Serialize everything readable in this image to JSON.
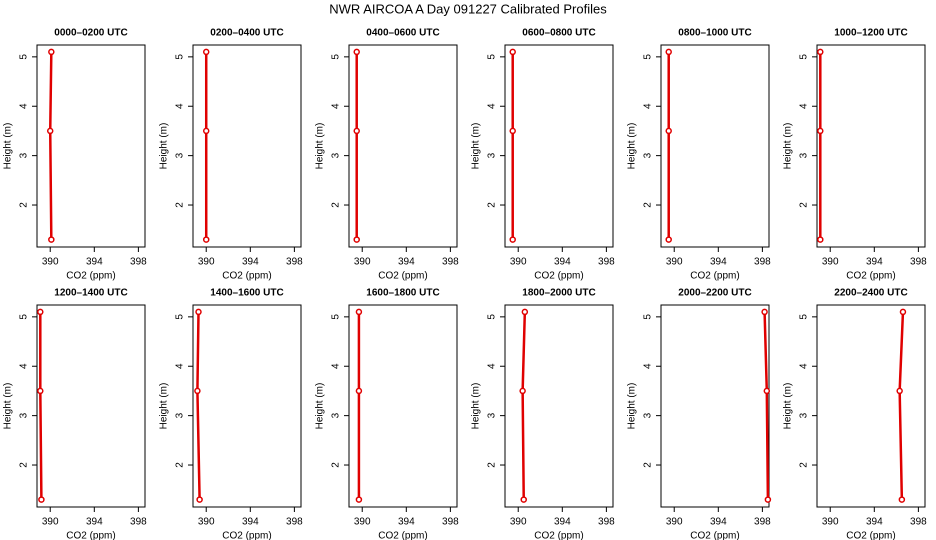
{
  "title": "NWR AIRCOA A  Day 091227  Calibrated Profiles",
  "chart_data": [
    {
      "type": "scatter",
      "title": "0000–0200 UTC",
      "xlabel": "CO2 (ppm)",
      "ylabel": "Height (m)",
      "color": "#e00000",
      "x": [
        390.1,
        390.0,
        390.1
      ],
      "values": [
        1.3,
        3.5,
        5.1
      ],
      "xlim": [
        388.8,
        398.6
      ],
      "ylim": [
        1.15,
        5.24
      ],
      "xticks": [
        390,
        394,
        398
      ],
      "yticks": [
        2,
        3,
        4,
        5
      ]
    },
    {
      "type": "scatter",
      "title": "0200–0400 UTC",
      "xlabel": "CO2 (ppm)",
      "ylabel": "Height (m)",
      "color": "#e00000",
      "x": [
        390.0,
        390.0,
        390.0
      ],
      "values": [
        1.3,
        3.5,
        5.1
      ],
      "xlim": [
        388.8,
        398.6
      ],
      "ylim": [
        1.15,
        5.24
      ],
      "xticks": [
        390,
        394,
        398
      ],
      "yticks": [
        2,
        3,
        4,
        5
      ]
    },
    {
      "type": "scatter",
      "title": "0400–0600 UTC",
      "xlabel": "CO2 (ppm)",
      "ylabel": "Height (m)",
      "color": "#e00000",
      "x": [
        389.5,
        389.5,
        389.5
      ],
      "values": [
        1.3,
        3.5,
        5.1
      ],
      "xlim": [
        388.8,
        398.6
      ],
      "ylim": [
        1.15,
        5.24
      ],
      "xticks": [
        390,
        394,
        398
      ],
      "yticks": [
        2,
        3,
        4,
        5
      ]
    },
    {
      "type": "scatter",
      "title": "0600–0800 UTC",
      "xlabel": "CO2 (ppm)",
      "ylabel": "Height (m)",
      "color": "#e00000",
      "x": [
        389.5,
        389.5,
        389.5
      ],
      "values": [
        1.3,
        3.5,
        5.1
      ],
      "xlim": [
        388.8,
        398.6
      ],
      "ylim": [
        1.15,
        5.24
      ],
      "xticks": [
        390,
        394,
        398
      ],
      "yticks": [
        2,
        3,
        4,
        5
      ]
    },
    {
      "type": "scatter",
      "title": "0800–1000 UTC",
      "xlabel": "CO2 (ppm)",
      "ylabel": "Height (m)",
      "color": "#e00000",
      "x": [
        389.5,
        389.5,
        389.5
      ],
      "values": [
        1.3,
        3.5,
        5.1
      ],
      "xlim": [
        388.8,
        398.6
      ],
      "ylim": [
        1.15,
        5.24
      ],
      "xticks": [
        390,
        394,
        398
      ],
      "yticks": [
        2,
        3,
        4,
        5
      ]
    },
    {
      "type": "scatter",
      "title": "1000–1200 UTC",
      "xlabel": "CO2 (ppm)",
      "ylabel": "Height (m)",
      "color": "#e00000",
      "x": [
        389.1,
        389.1,
        389.1
      ],
      "values": [
        1.3,
        3.5,
        5.1
      ],
      "xlim": [
        388.8,
        398.6
      ],
      "ylim": [
        1.15,
        5.24
      ],
      "xticks": [
        390,
        394,
        398
      ],
      "yticks": [
        2,
        3,
        4,
        5
      ]
    },
    {
      "type": "scatter",
      "title": "1200–1400 UTC",
      "xlabel": "CO2 (ppm)",
      "ylabel": "Height (m)",
      "color": "#e00000",
      "x": [
        389.2,
        389.1,
        389.1
      ],
      "values": [
        1.3,
        3.5,
        5.1
      ],
      "xlim": [
        388.8,
        398.6
      ],
      "ylim": [
        1.15,
        5.24
      ],
      "xticks": [
        390,
        394,
        398
      ],
      "yticks": [
        2,
        3,
        4,
        5
      ]
    },
    {
      "type": "scatter",
      "title": "1400–1600 UTC",
      "xlabel": "CO2 (ppm)",
      "ylabel": "Height (m)",
      "color": "#e00000",
      "x": [
        389.4,
        389.2,
        389.3
      ],
      "values": [
        1.3,
        3.5,
        5.1
      ],
      "xlim": [
        388.8,
        398.6
      ],
      "ylim": [
        1.15,
        5.24
      ],
      "xticks": [
        390,
        394,
        398
      ],
      "yticks": [
        2,
        3,
        4,
        5
      ]
    },
    {
      "type": "scatter",
      "title": "1600–1800 UTC",
      "xlabel": "CO2 (ppm)",
      "ylabel": "Height (m)",
      "color": "#e00000",
      "x": [
        389.7,
        389.7,
        389.7
      ],
      "values": [
        1.3,
        3.5,
        5.1
      ],
      "xlim": [
        388.8,
        398.6
      ],
      "ylim": [
        1.15,
        5.24
      ],
      "xticks": [
        390,
        394,
        398
      ],
      "yticks": [
        2,
        3,
        4,
        5
      ]
    },
    {
      "type": "scatter",
      "title": "1800–2000 UTC",
      "xlabel": "CO2 (ppm)",
      "ylabel": "Height (m)",
      "color": "#e00000",
      "x": [
        390.5,
        390.4,
        390.6
      ],
      "values": [
        1.3,
        3.5,
        5.1
      ],
      "xlim": [
        388.8,
        398.6
      ],
      "ylim": [
        1.15,
        5.24
      ],
      "xticks": [
        390,
        394,
        398
      ],
      "yticks": [
        2,
        3,
        4,
        5
      ]
    },
    {
      "type": "scatter",
      "title": "2000–2200 UTC",
      "xlabel": "CO2 (ppm)",
      "ylabel": "Height (m)",
      "color": "#e00000",
      "x": [
        398.5,
        398.4,
        398.2
      ],
      "values": [
        1.3,
        3.5,
        5.1
      ],
      "xlim": [
        388.8,
        398.6
      ],
      "ylim": [
        1.15,
        5.24
      ],
      "xticks": [
        390,
        394,
        398
      ],
      "yticks": [
        2,
        3,
        4,
        5
      ]
    },
    {
      "type": "scatter",
      "title": "2200–2400 UTC",
      "xlabel": "CO2 (ppm)",
      "ylabel": "Height (m)",
      "color": "#e00000",
      "x": [
        396.5,
        396.3,
        396.6
      ],
      "values": [
        1.3,
        3.5,
        5.1
      ],
      "xlim": [
        388.8,
        398.6
      ],
      "ylim": [
        1.15,
        5.24
      ],
      "xticks": [
        390,
        394,
        398
      ],
      "yticks": [
        2,
        3,
        4,
        5
      ]
    }
  ]
}
